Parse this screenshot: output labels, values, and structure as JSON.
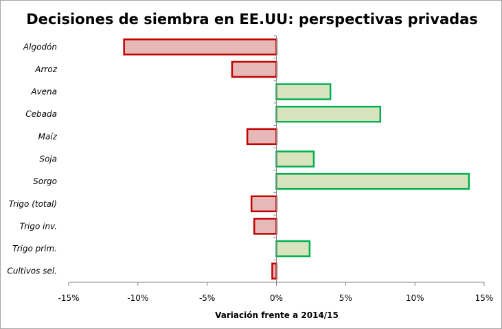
{
  "chart_data": {
    "type": "bar",
    "orientation": "horizontal",
    "title": "Decisiones de siembra en EE.UU: perspectivas privadas",
    "xlabel": "Variación frente a 2014/15",
    "ylabel": "",
    "categories": [
      "Algodón",
      "Arroz",
      "Avena",
      "Cebada",
      "Maíz",
      "Soja",
      "Sorgo",
      "Trigo (total)",
      "Trigo inv.",
      "Trigo prim.",
      "Cultivos sel."
    ],
    "values": [
      -11.0,
      -3.2,
      3.9,
      7.5,
      -2.1,
      2.7,
      13.9,
      -1.8,
      -1.6,
      2.4,
      -0.3
    ],
    "xlim": [
      -15,
      15
    ],
    "xticks": [
      -15,
      -10,
      -5,
      0,
      5,
      10,
      15
    ],
    "xtick_labels": [
      "-15%",
      "-10%",
      "-5%",
      "0%",
      "5%",
      "10%",
      "15%"
    ],
    "grid": false,
    "legend": "none",
    "colors": {
      "negative_fill": "#e6b9b8",
      "negative_border": "#c00000",
      "positive_fill": "#d7e4bd",
      "positive_border": "#00b050",
      "axis": "#808080"
    }
  }
}
